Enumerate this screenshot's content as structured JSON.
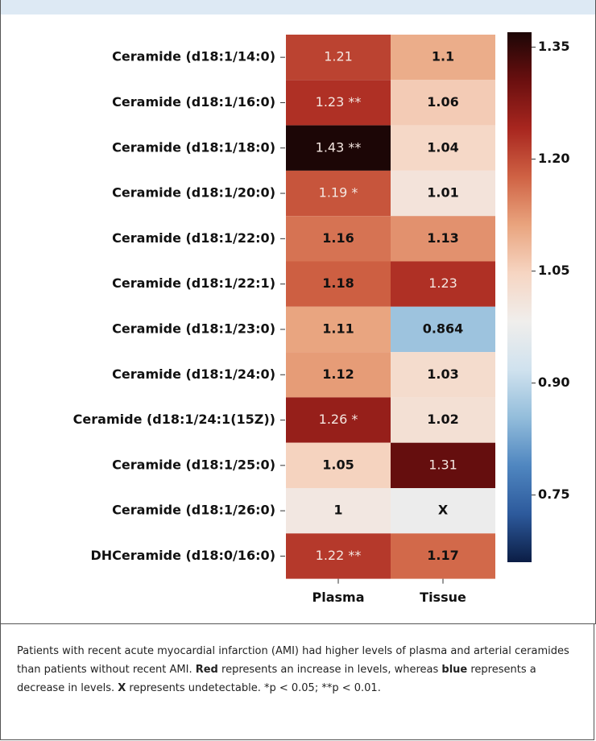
{
  "chart_data": {
    "type": "heatmap",
    "categories": [
      "Ceramide (d18:1/14:0)",
      "Ceramide (d18:1/16:0)",
      "Ceramide (d18:1/18:0)",
      "Ceramide (d18:1/20:0)",
      "Ceramide (d18:1/22:0)",
      "Ceramide (d18:1/22:1)",
      "Ceramide (d18:1/23:0)",
      "Ceramide (d18:1/24:0)",
      "Ceramide (d18:1/24:1(15Z))",
      "Ceramide (d18:1/25:0)",
      "Ceramide (d18:1/26:0)",
      "DHCeramide (d18:0/16:0)"
    ],
    "series": [
      {
        "name": "Plasma",
        "values": [
          1.21,
          1.23,
          1.43,
          1.19,
          1.16,
          1.18,
          1.11,
          1.12,
          1.26,
          1.05,
          1,
          1.22
        ],
        "value_labels": [
          "1.21",
          "1.23 **",
          "1.43 **",
          "1.19 *",
          "1.16",
          "1.18",
          "1.11",
          "1.12",
          "1.26 *",
          "1.05",
          "1",
          "1.22 **"
        ]
      },
      {
        "name": "Tissue",
        "values": [
          1.1,
          1.06,
          1.04,
          1.01,
          1.13,
          1.23,
          0.864,
          1.03,
          1.02,
          1.31,
          null,
          1.17
        ],
        "value_labels": [
          "1.1",
          "1.06",
          "1.04",
          "1.01",
          "1.13",
          "1.23",
          "0.864",
          "1.03",
          "1.02",
          "1.31",
          "X",
          "1.17"
        ]
      }
    ],
    "zlim": [
      0.66,
      1.37
    ],
    "zticks": [
      {
        "value": 1.35,
        "label": "1.35"
      },
      {
        "value": 1.2,
        "label": "1.20"
      },
      {
        "value": 1.05,
        "label": "1.05"
      },
      {
        "value": 0.9,
        "label": "0.90"
      },
      {
        "value": 0.75,
        "label": "0.75"
      }
    ],
    "colormap": [
      "#0b1d45",
      "#2d5a9c",
      "#4f86c0",
      "#93bddb",
      "#d0e2ee",
      "#f0eeec",
      "#f6d5c2",
      "#e9a47e",
      "#cf6244",
      "#a8261f",
      "#6a0f0f",
      "#1c0606"
    ],
    "missing_color": "#ececec"
  },
  "caption": [
    "Patients with recent acute myocardial infarction (AMI) had higher levels of plasma and arterial ceramides than patients without recent AMI. ",
    "Red",
    " represents an increase in levels, whereas ",
    "blue",
    " represents a decrease in levels. ",
    "X",
    " represents undetectable. *p < 0.05; **p < 0.01."
  ]
}
